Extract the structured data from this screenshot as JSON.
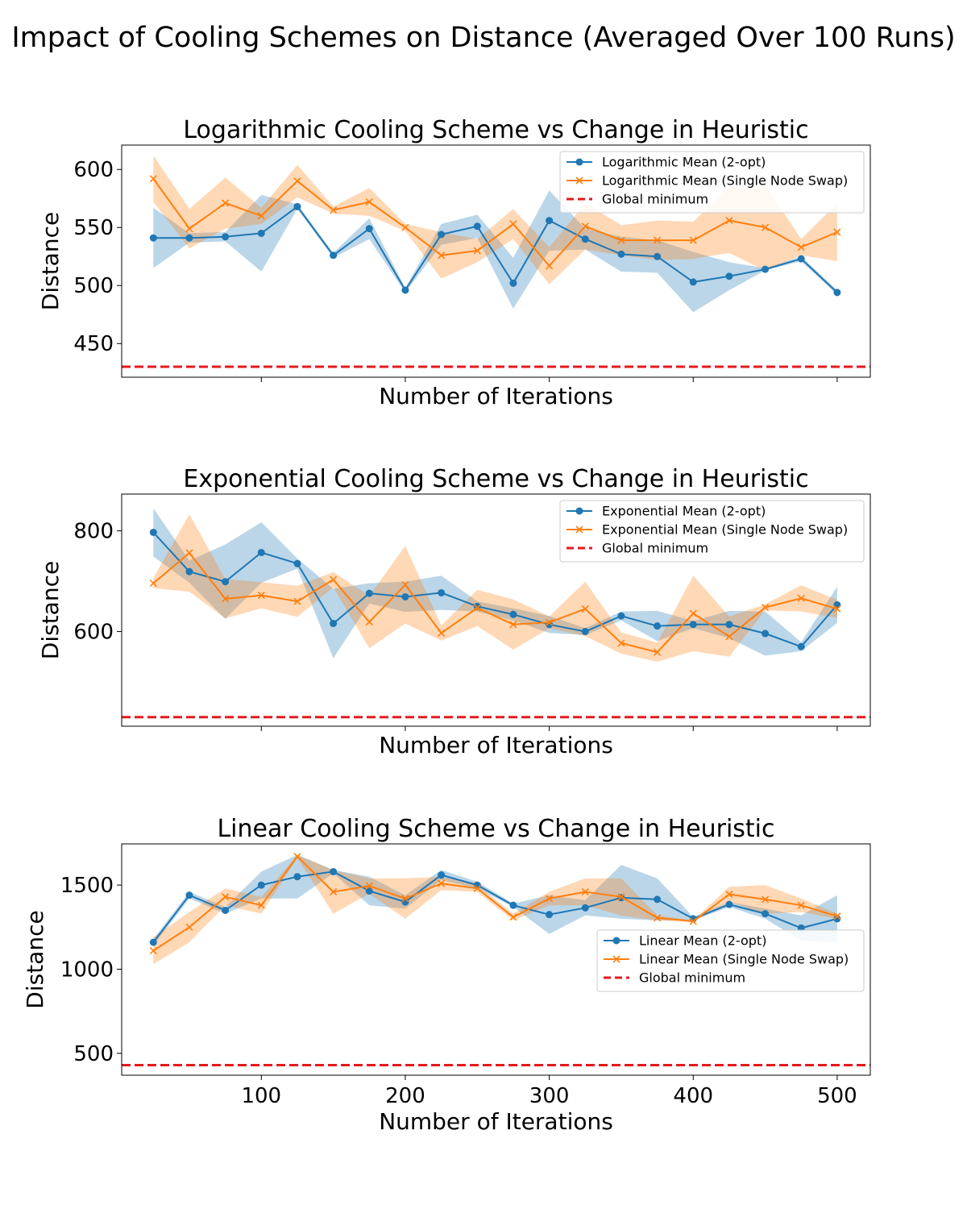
{
  "figure": {
    "suptitle": "Impact of Cooling Schemes on Distance (Averaged Over 100 Runs)"
  },
  "colors": {
    "series_2opt": "#1f77b4",
    "series_swap": "#ff7f0e",
    "global_min": "#e41a1c",
    "band_2opt": "#1f77b4",
    "band_swap": "#ff7f0e"
  },
  "chart_data": [
    {
      "type": "line",
      "title": "Logarithmic Cooling Scheme vs Change in Heuristic",
      "xlabel": "Number of Iterations",
      "ylabel": "Distance",
      "show_x_tick_labels": false,
      "x": [
        25,
        50,
        75,
        100,
        125,
        150,
        175,
        200,
        225,
        250,
        275,
        300,
        325,
        350,
        375,
        400,
        425,
        450,
        475,
        500
      ],
      "xlim": [
        3,
        523
      ],
      "xticks": [
        100,
        200,
        300,
        400,
        500
      ],
      "ylim": [
        421,
        621
      ],
      "yticks": [
        450,
        500,
        550,
        600
      ],
      "legend_position": "top-right",
      "series": [
        {
          "name": "Logarithmic Mean (2-opt)",
          "marker": "o",
          "values": [
            541,
            541,
            542,
            545,
            568,
            526,
            549,
            496,
            544,
            551,
            502,
            556,
            540,
            527,
            525,
            503,
            508,
            514,
            523,
            494
          ],
          "band_low": [
            515,
            537,
            538,
            512,
            566,
            524,
            540,
            494,
            535,
            541,
            480,
            530,
            531,
            512,
            511,
            477,
            496,
            513,
            521,
            492
          ],
          "band_high": [
            567,
            545,
            546,
            578,
            570,
            528,
            558,
            498,
            553,
            561,
            524,
            582,
            549,
            542,
            539,
            529,
            520,
            515,
            525,
            496
          ]
        },
        {
          "name": "Logarithmic Mean (Single Node Swap)",
          "marker": "x",
          "values": [
            592,
            549,
            571,
            560,
            590,
            565,
            572,
            550,
            526,
            530,
            553,
            517,
            551,
            539,
            539,
            539,
            556,
            550,
            533,
            546
          ],
          "band_low": [
            572,
            532,
            549,
            553,
            576,
            562,
            560,
            547,
            506,
            520,
            540,
            501,
            531,
            526,
            522,
            523,
            528,
            513,
            526,
            521
          ],
          "band_high": [
            612,
            566,
            593,
            567,
            604,
            568,
            584,
            553,
            546,
            540,
            566,
            533,
            571,
            552,
            556,
            555,
            584,
            587,
            540,
            571
          ]
        },
        {
          "name": "Global minimum",
          "style": "dashed",
          "constant": 430
        }
      ]
    },
    {
      "type": "line",
      "title": "Exponential Cooling Scheme vs Change in Heuristic",
      "xlabel": "Number of Iterations",
      "ylabel": "Distance",
      "show_x_tick_labels": false,
      "x": [
        25,
        50,
        75,
        100,
        125,
        150,
        175,
        200,
        225,
        250,
        275,
        300,
        325,
        350,
        375,
        400,
        425,
        450,
        475,
        500
      ],
      "xlim": [
        3,
        523
      ],
      "xticks": [
        100,
        200,
        300,
        400,
        500
      ],
      "ylim": [
        412,
        873
      ],
      "yticks": [
        600,
        800
      ],
      "legend_position": "top-right",
      "series": [
        {
          "name": "Exponential Mean (2-opt)",
          "marker": "o",
          "values": [
            797,
            719,
            699,
            757,
            735,
            616,
            676,
            669,
            677,
            650,
            634,
            614,
            600,
            631,
            611,
            614,
            614,
            596,
            570,
            653
          ],
          "band_low": [
            749,
            697,
            625,
            697,
            725,
            547,
            656,
            639,
            643,
            640,
            622,
            597,
            593,
            622,
            581,
            607,
            587,
            552,
            561,
            617
          ],
          "band_high": [
            845,
            741,
            773,
            817,
            745,
            685,
            696,
            699,
            711,
            660,
            646,
            631,
            607,
            640,
            641,
            621,
            641,
            640,
            579,
            689
          ]
        },
        {
          "name": "Exponential Mean (Single Node Swap)",
          "marker": "x",
          "values": [
            696,
            756,
            665,
            672,
            660,
            703,
            619,
            693,
            597,
            647,
            614,
            618,
            645,
            577,
            559,
            636,
            590,
            648,
            666,
            645
          ],
          "band_low": [
            686,
            679,
            626,
            646,
            629,
            688,
            567,
            616,
            582,
            611,
            564,
            606,
            591,
            556,
            540,
            561,
            550,
            642,
            640,
            627
          ],
          "band_high": [
            706,
            833,
            704,
            698,
            691,
            718,
            671,
            770,
            612,
            683,
            664,
            630,
            699,
            598,
            578,
            711,
            630,
            654,
            692,
            663
          ]
        },
        {
          "name": "Global minimum",
          "style": "dashed",
          "constant": 430
        }
      ]
    },
    {
      "type": "line",
      "title": "Linear Cooling Scheme vs Change in Heuristic",
      "xlabel": "Number of Iterations",
      "ylabel": "Distance",
      "show_x_tick_labels": true,
      "x": [
        25,
        50,
        75,
        100,
        125,
        150,
        175,
        200,
        225,
        250,
        275,
        300,
        325,
        350,
        375,
        400,
        425,
        450,
        475,
        500
      ],
      "xlim": [
        3,
        523
      ],
      "xticks": [
        100,
        200,
        300,
        400,
        500
      ],
      "ylim": [
        370,
        1745
      ],
      "yticks": [
        500,
        1000,
        1500
      ],
      "legend_position": "center-right",
      "series": [
        {
          "name": "Linear Mean (2-opt)",
          "marker": "o",
          "values": [
            1160,
            1440,
            1350,
            1500,
            1550,
            1580,
            1465,
            1400,
            1560,
            1500,
            1380,
            1325,
            1365,
            1425,
            1415,
            1300,
            1385,
            1330,
            1245,
            1300
          ],
          "band_low": [
            1140,
            1420,
            1330,
            1420,
            1420,
            1570,
            1380,
            1360,
            1530,
            1480,
            1370,
            1210,
            1320,
            1300,
            1290,
            1290,
            1370,
            1300,
            1170,
            1160
          ],
          "band_high": [
            1180,
            1460,
            1370,
            1580,
            1680,
            1590,
            1550,
            1440,
            1590,
            1520,
            1390,
            1440,
            1410,
            1620,
            1540,
            1310,
            1400,
            1360,
            1320,
            1440
          ]
        },
        {
          "name": "Linear Mean (Single Node Swap)",
          "marker": "x",
          "values": [
            1110,
            1250,
            1430,
            1380,
            1670,
            1460,
            1495,
            1420,
            1510,
            1480,
            1310,
            1420,
            1460,
            1430,
            1305,
            1285,
            1445,
            1415,
            1380,
            1315
          ],
          "band_low": [
            1030,
            1160,
            1380,
            1330,
            1660,
            1330,
            1450,
            1300,
            1470,
            1460,
            1290,
            1380,
            1380,
            1320,
            1290,
            1280,
            1400,
            1330,
            1340,
            1300
          ],
          "band_high": [
            1190,
            1340,
            1480,
            1430,
            1680,
            1590,
            1540,
            1540,
            1550,
            1500,
            1330,
            1460,
            1540,
            1540,
            1320,
            1290,
            1490,
            1500,
            1420,
            1330
          ]
        },
        {
          "name": "Global minimum",
          "style": "dashed",
          "constant": 430
        }
      ]
    }
  ]
}
